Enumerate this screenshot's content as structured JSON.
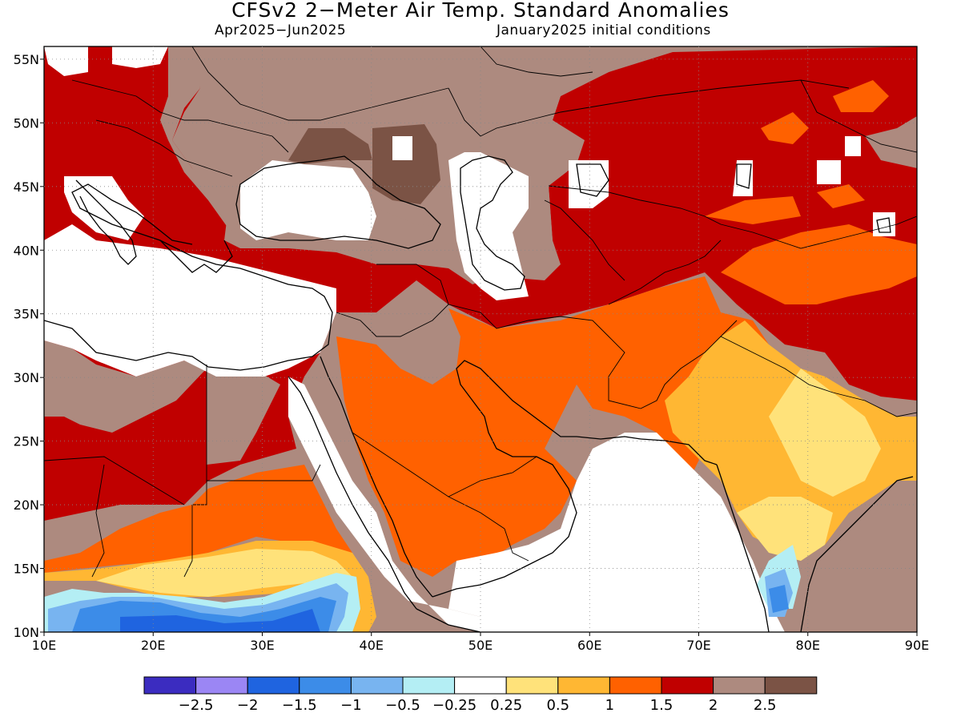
{
  "title": "CFSv2 2−Meter Air Temp. Standard Anomalies",
  "period": "Apr2025−Jun2025",
  "init": "January2025 initial conditions",
  "map": {
    "lat_labels": [
      "55N",
      "50N",
      "45N",
      "40N",
      "35N",
      "30N",
      "25N",
      "20N",
      "15N",
      "10N"
    ],
    "lon_labels": [
      "10E",
      "20E",
      "30E",
      "40E",
      "50E",
      "60E",
      "70E",
      "80E",
      "90E"
    ],
    "lat_range": [
      10,
      56
    ],
    "lon_range": [
      10,
      90
    ]
  },
  "legend": {
    "colors": [
      "#3b2cc0",
      "#9b86f4",
      "#1f64e0",
      "#3c8ce8",
      "#78b4f0",
      "#b4eef4",
      "#ffffff",
      "#ffe27a",
      "#ffb733",
      "#ff6100",
      "#c00000",
      "#ad8a7f",
      "#7b5345"
    ],
    "labels": [
      "−2.5",
      "−2",
      "−1.5",
      "−1",
      "−0.5",
      "−0.25",
      "0.25",
      "0.5",
      "1",
      "1.5",
      "2",
      "2.5"
    ]
  }
}
